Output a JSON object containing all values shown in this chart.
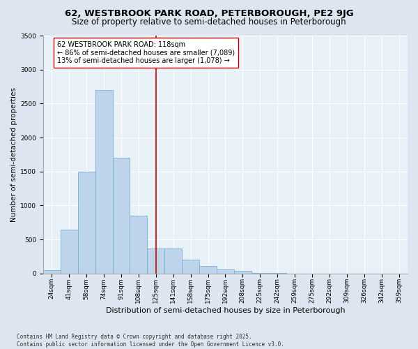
{
  "title": "62, WESTBROOK PARK ROAD, PETERBOROUGH, PE2 9JG",
  "subtitle": "Size of property relative to semi-detached houses in Peterborough",
  "xlabel": "Distribution of semi-detached houses by size in Peterborough",
  "ylabel": "Number of semi-detached properties",
  "footnote": "Contains HM Land Registry data © Crown copyright and database right 2025.\nContains public sector information licensed under the Open Government Licence v3.0.",
  "categories": [
    "24sqm",
    "41sqm",
    "58sqm",
    "74sqm",
    "91sqm",
    "108sqm",
    "125sqm",
    "141sqm",
    "158sqm",
    "175sqm",
    "192sqm",
    "208sqm",
    "225sqm",
    "242sqm",
    "259sqm",
    "275sqm",
    "292sqm",
    "309sqm",
    "326sqm",
    "342sqm",
    "359sqm"
  ],
  "bar_values": [
    50,
    650,
    1500,
    2700,
    1700,
    850,
    370,
    370,
    200,
    110,
    60,
    40,
    10,
    5,
    2,
    1,
    0,
    0,
    0,
    0,
    0
  ],
  "bar_color": "#bdd4ea",
  "bar_edge_color": "#7aadd4",
  "vline_x": 6.0,
  "vline_color": "#cc0000",
  "annotation_text": "62 WESTBROOK PARK ROAD: 118sqm\n← 86% of semi-detached houses are smaller (7,089)\n13% of semi-detached houses are larger (1,078) →",
  "annotation_box_color": "#ffffff",
  "annotation_box_edge_color": "#cc0000",
  "ylim": [
    0,
    3500
  ],
  "yticks": [
    0,
    500,
    1000,
    1500,
    2000,
    2500,
    3000,
    3500
  ],
  "bg_color": "#dde6f0",
  "plot_bg_color": "#e8f0f8",
  "title_fontsize": 9.5,
  "subtitle_fontsize": 8.5,
  "tick_fontsize": 6.5,
  "ylabel_fontsize": 7.5,
  "xlabel_fontsize": 8.0,
  "footnote_fontsize": 5.5,
  "annot_fontsize": 7.0
}
